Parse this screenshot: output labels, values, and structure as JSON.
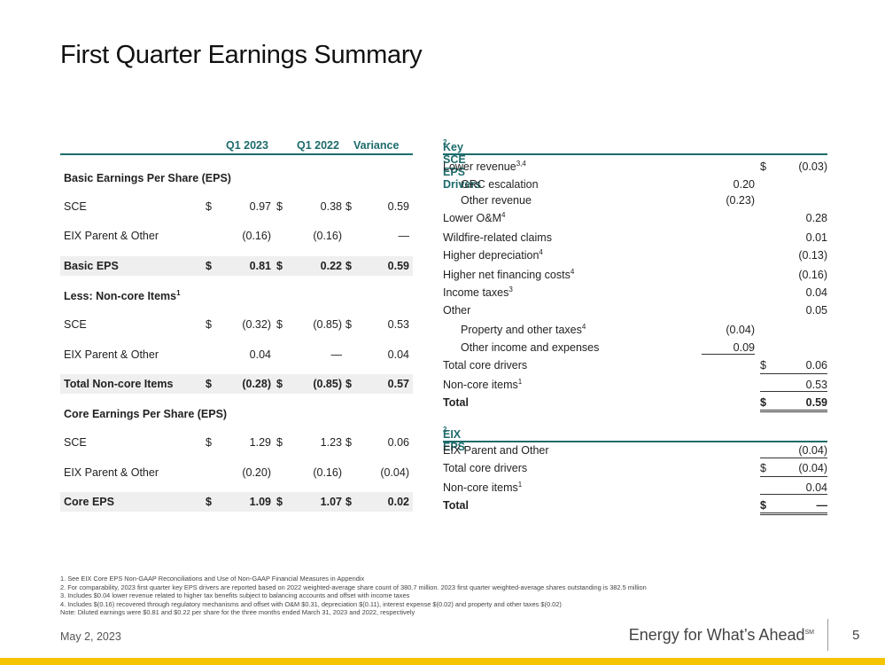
{
  "title": "First Quarter Earnings Summary",
  "left_table": {
    "headers": {
      "q1_2023": "Q1 2023",
      "q1_2022": "Q1 2022",
      "variance": "Variance"
    },
    "basic_header": "Basic Earnings Per Share (EPS)",
    "noncore_header": "Less: Non-core Items",
    "noncore_sup": "1",
    "core_header": "Core Earnings Per Share (EPS)",
    "rows": [
      {
        "label": "SCE",
        "d1": "$",
        "v1": "0.97",
        "d2": "$",
        "v2": "0.38",
        "d3": "$",
        "v3": "0.59"
      },
      {
        "label": "EIX Parent & Other",
        "d1": "",
        "v1": "(0.16)",
        "d2": "",
        "v2": "(0.16)",
        "d3": "",
        "v3": "—"
      },
      {
        "label": "Basic EPS",
        "d1": "$",
        "v1": "0.81",
        "d2": "$",
        "v2": "0.22",
        "d3": "$",
        "v3": "0.59"
      },
      {
        "label": "SCE",
        "d1": "$",
        "v1": "(0.32)",
        "d2": "$",
        "v2": "(0.85)",
        "d3": "$",
        "v3": "0.53"
      },
      {
        "label": "EIX Parent & Other",
        "d1": "",
        "v1": "0.04",
        "d2": "",
        "v2": "—",
        "d3": "",
        "v3": "0.04"
      },
      {
        "label": "Total Non-core Items",
        "d1": "$",
        "v1": "(0.28)",
        "d2": "$",
        "v2": "(0.85)",
        "d3": "$",
        "v3": "0.57"
      },
      {
        "label": "SCE",
        "d1": "$",
        "v1": "1.29",
        "d2": "$",
        "v2": "1.23",
        "d3": "$",
        "v3": "0.06"
      },
      {
        "label": "EIX Parent & Other",
        "d1": "",
        "v1": "(0.20)",
        "d2": "",
        "v2": "(0.16)",
        "d3": "",
        "v3": "(0.04)"
      },
      {
        "label": "Core EPS",
        "d1": "$",
        "v1": "1.09",
        "d2": "$",
        "v2": "1.07",
        "d3": "$",
        "v3": "0.02"
      }
    ]
  },
  "drivers": {
    "header": "Key SCE EPS Drivers",
    "header_sup": "2",
    "rows": [
      {
        "label": "Lower revenue",
        "sup": "3,4",
        "mid": "",
        "dollar": "$",
        "value": "(0.03)"
      },
      {
        "label": "GRC escalation",
        "sup": "",
        "mid": "0.20",
        "dollar": "",
        "value": ""
      },
      {
        "label": "Other revenue",
        "sup": "",
        "mid": "(0.23)",
        "dollar": "",
        "value": ""
      },
      {
        "label": "Lower O&M",
        "sup": "4",
        "mid": "",
        "dollar": "",
        "value": "0.28"
      },
      {
        "label": "Wildfire-related claims",
        "sup": "",
        "mid": "",
        "dollar": "",
        "value": "0.01"
      },
      {
        "label": "Higher depreciation",
        "sup": "4",
        "mid": "",
        "dollar": "",
        "value": "(0.13)"
      },
      {
        "label": "Higher net financing costs",
        "sup": "4",
        "mid": "",
        "dollar": "",
        "value": "(0.16)"
      },
      {
        "label": "Income taxes",
        "sup": "3",
        "mid": "",
        "dollar": "",
        "value": "0.04"
      },
      {
        "label": "Other",
        "sup": "",
        "mid": "",
        "dollar": "",
        "value": "0.05"
      },
      {
        "label": "Property and other taxes",
        "sup": "4",
        "mid": "(0.04)",
        "dollar": "",
        "value": ""
      },
      {
        "label": "Other income and expenses",
        "sup": "",
        "mid": "0.09",
        "dollar": "",
        "value": ""
      },
      {
        "label": "Total core drivers",
        "sup": "",
        "mid": "",
        "dollar": "$",
        "value": "0.06"
      },
      {
        "label": "Non-core items",
        "sup": "1",
        "mid": "",
        "dollar": "",
        "value": "0.53"
      },
      {
        "label": "Total",
        "sup": "",
        "mid": "",
        "dollar": "$",
        "value": "0.59"
      }
    ]
  },
  "eix": {
    "header": "EIX EPS",
    "header_sup": "2",
    "rows": [
      {
        "label": "EIX Parent and Other",
        "sup": "",
        "dollar": "",
        "value": "(0.04)"
      },
      {
        "label": "Total core drivers",
        "sup": "",
        "dollar": "$",
        "value": "(0.04)"
      },
      {
        "label": "Non-core items",
        "sup": "1",
        "dollar": "",
        "value": "0.04"
      },
      {
        "label": "Total",
        "sup": "",
        "dollar": "$",
        "value": "—"
      }
    ]
  },
  "footnotes": [
    "1.  See EIX Core EPS Non-GAAP Reconciliations and Use of Non-GAAP Financial Measures in Appendix",
    "2.  For comparability, 2023 first quarter key EPS drivers are reported based on 2022 weighted-average share count of 380.7 million. 2023 first quarter weighted-average shares outstanding is 382.5 million",
    "3.  Includes $0.04 lower revenue related to higher tax benefits subject to balancing accounts and offset with income taxes",
    "4.  Includes $(0.16) recovered through regulatory mechanisms and offset with O&M $0.31, depreciation $(0.11), interest expense $(0.02) and property and other taxes $(0.02)",
    "Note: Diluted earnings were $0.81 and $0.22 per share for the three months ended March 31, 2023 and 2022, respectively"
  ],
  "footer": {
    "date": "May 2, 2023",
    "tagline": "Energy for What’s Ahead",
    "tagline_mark": "SM",
    "page": "5"
  }
}
